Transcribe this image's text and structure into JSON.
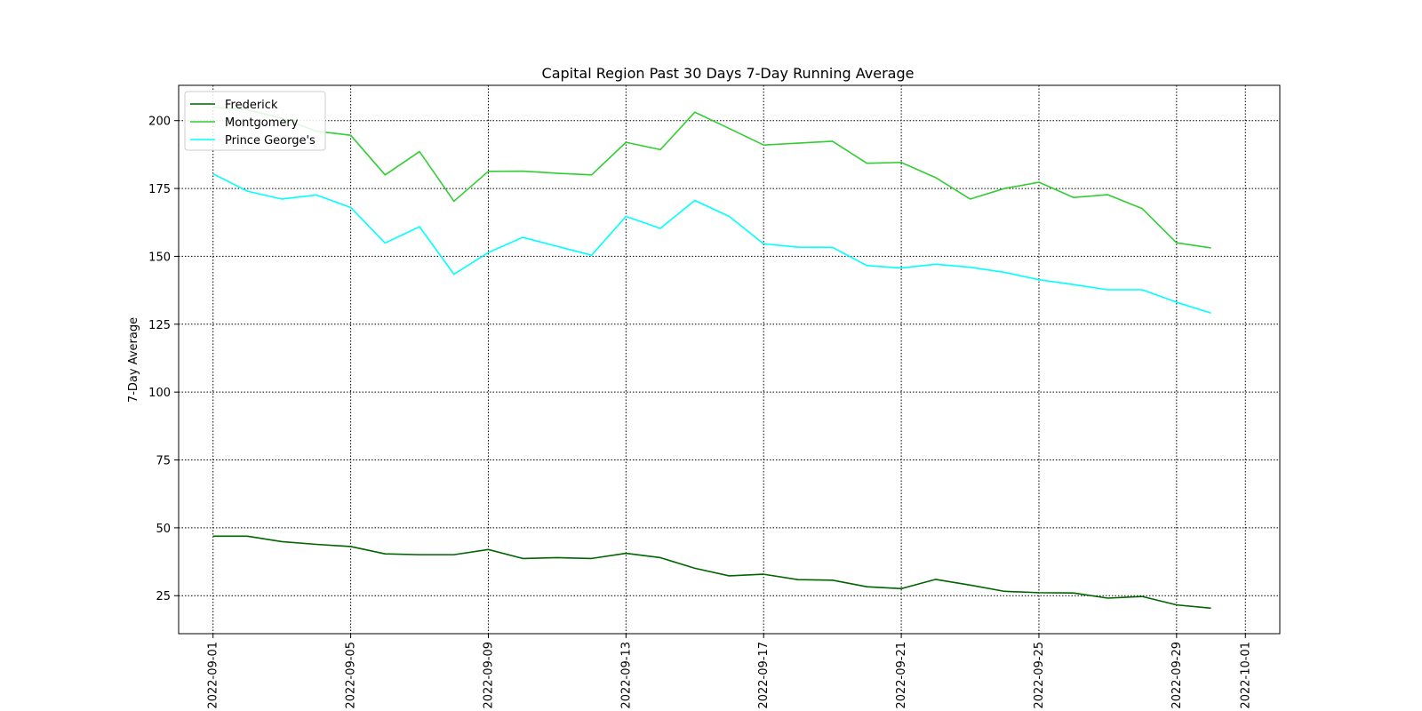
{
  "chart_data": {
    "type": "line",
    "title": "Capital Region Past 30 Days 7-Day Running Average",
    "xlabel": "",
    "ylabel": "7-Day Average",
    "grid": true,
    "legend_position": "top-left",
    "xlim": [
      "2022-08-31",
      "2022-10-02"
    ],
    "ylim": [
      11,
      213
    ],
    "x_ticks": [
      "2022-09-01",
      "2022-09-05",
      "2022-09-09",
      "2022-09-13",
      "2022-09-17",
      "2022-09-21",
      "2022-09-25",
      "2022-09-29",
      "2022-10-01"
    ],
    "y_ticks": [
      25,
      50,
      75,
      100,
      125,
      150,
      175,
      200
    ],
    "x": [
      "2022-09-01",
      "2022-09-02",
      "2022-09-03",
      "2022-09-04",
      "2022-09-05",
      "2022-09-06",
      "2022-09-07",
      "2022-09-08",
      "2022-09-09",
      "2022-09-10",
      "2022-09-11",
      "2022-09-12",
      "2022-09-13",
      "2022-09-14",
      "2022-09-15",
      "2022-09-16",
      "2022-09-17",
      "2022-09-18",
      "2022-09-19",
      "2022-09-20",
      "2022-09-21",
      "2022-09-22",
      "2022-09-23",
      "2022-09-24",
      "2022-09-25",
      "2022-09-26",
      "2022-09-27",
      "2022-09-28",
      "2022-09-29",
      "2022-09-30"
    ],
    "series": [
      {
        "name": "Frederick",
        "color": "#006400",
        "values": [
          46.9,
          46.9,
          44.9,
          43.9,
          43.1,
          40.4,
          40.1,
          40.1,
          42.0,
          38.7,
          39.0,
          38.7,
          40.6,
          39.0,
          35.1,
          32.3,
          32.9,
          30.9,
          30.7,
          28.3,
          27.6,
          31.0,
          28.9,
          26.6,
          26.1,
          26.0,
          24.1,
          24.7,
          21.6,
          20.4
        ]
      },
      {
        "name": "Montgomery",
        "color": "#32cd32",
        "values": [
          205.0,
          204.0,
          200.9,
          196.1,
          194.6,
          180.0,
          188.6,
          170.3,
          181.3,
          181.4,
          180.6,
          180.0,
          192.0,
          189.3,
          203.1,
          197.1,
          191.0,
          191.7,
          192.4,
          184.3,
          184.6,
          179.0,
          171.1,
          175.0,
          177.3,
          171.7,
          172.7,
          167.6,
          155.0,
          153.1
        ]
      },
      {
        "name": "Prince George's",
        "color": "#00ffff",
        "values": [
          180.4,
          174.0,
          171.1,
          172.6,
          168.0,
          154.9,
          160.9,
          143.4,
          151.4,
          157.0,
          153.7,
          150.4,
          164.7,
          160.3,
          170.6,
          164.7,
          154.6,
          153.4,
          153.3,
          146.6,
          145.7,
          147.1,
          146.0,
          144.1,
          141.4,
          139.6,
          137.7,
          137.7,
          133.1,
          129.1
        ]
      }
    ]
  }
}
